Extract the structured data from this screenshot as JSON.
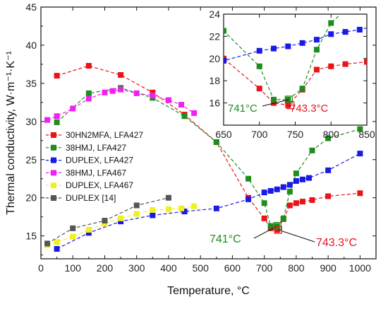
{
  "chart_data": {
    "type": "line",
    "title": "",
    "xlabel": "Temperature, °C",
    "ylabel": "Thermal conductivity, W·m⁻¹·K⁻¹",
    "xlim": [
      0,
      1050
    ],
    "ylim": [
      12,
      45
    ],
    "xticks": [
      0,
      100,
      200,
      300,
      400,
      500,
      600,
      700,
      800,
      900,
      1000
    ],
    "yticks": [
      15,
      20,
      25,
      30,
      35,
      40,
      45
    ],
    "grid": false,
    "legend_position": "middle-left",
    "series": [
      {
        "name": "30HN2MFA, LFA427",
        "color": "#e8141a",
        "x": [
          50,
          150,
          250,
          350,
          450,
          550,
          650,
          700,
          720,
          740,
          760,
          780,
          800,
          820,
          850,
          900,
          1000
        ],
        "y": [
          36.0,
          37.3,
          36.1,
          33.8,
          30.9,
          27.3,
          20.0,
          17.3,
          16.0,
          15.8,
          17.2,
          19.0,
          19.3,
          19.5,
          19.7,
          20.2,
          20.6
        ]
      },
      {
        "name": "38HMJ, LFA427",
        "color": "#1e8c1e",
        "x": [
          50,
          150,
          250,
          350,
          450,
          550,
          650,
          700,
          720,
          740,
          760,
          780,
          800,
          850,
          900,
          1000
        ],
        "y": [
          29.9,
          33.7,
          34.4,
          33.1,
          30.7,
          27.3,
          22.5,
          19.3,
          16.3,
          16.3,
          17.3,
          20.8,
          23.2,
          26.2,
          27.8,
          29.0
        ]
      },
      {
        "name": "DUPLEX, LFA427",
        "color": "#1a1ae6",
        "x": [
          50,
          150,
          250,
          350,
          450,
          550,
          650,
          700,
          720,
          740,
          760,
          780,
          800,
          820,
          840,
          900,
          1000
        ],
        "y": [
          13.3,
          15.4,
          16.9,
          17.7,
          18.2,
          18.6,
          19.8,
          20.7,
          20.9,
          21.1,
          21.4,
          21.7,
          22.2,
          22.4,
          22.6,
          23.6,
          25.8
        ]
      },
      {
        "name": "38HMJ, LFA467",
        "color": "#f020f0",
        "x": [
          20,
          50,
          100,
          150,
          200,
          225,
          250,
          300,
          350,
          400,
          440,
          480
        ],
        "y": [
          30.2,
          30.7,
          31.7,
          33.0,
          33.8,
          34.0,
          34.2,
          33.7,
          33.4,
          32.8,
          32.2,
          31.1
        ]
      },
      {
        "name": "DUPLEX, LFA467",
        "color": "#f0f020",
        "x": [
          20,
          50,
          100,
          150,
          200,
          250,
          300,
          350,
          400,
          440,
          480
        ],
        "y": [
          13.8,
          14.2,
          14.9,
          15.8,
          16.6,
          17.3,
          17.9,
          18.4,
          18.5,
          18.6,
          18.9
        ]
      },
      {
        "name": "DUPLEX [14]",
        "color": "#555555",
        "x": [
          20,
          100,
          200,
          300,
          400
        ],
        "y": [
          14.0,
          16.0,
          17.0,
          19.0,
          20.0
        ]
      }
    ],
    "annotations": [
      {
        "text": "741°C",
        "color": "#1e8c1e",
        "x": 741,
        "y": 16.3
      },
      {
        "text": "743.3°C",
        "color": "#e8141a",
        "x": 743.3,
        "y": 15.8
      }
    ],
    "inset": {
      "xlim": [
        650,
        850
      ],
      "ylim": [
        14,
        24
      ],
      "xticks": [
        650,
        700,
        750,
        800,
        850
      ],
      "yticks": [
        16,
        18,
        20,
        22,
        24
      ],
      "annotations": [
        {
          "text": "741°C",
          "color": "#1e8c1e"
        },
        {
          "text": "743.3°C",
          "color": "#e8141a"
        }
      ]
    }
  }
}
